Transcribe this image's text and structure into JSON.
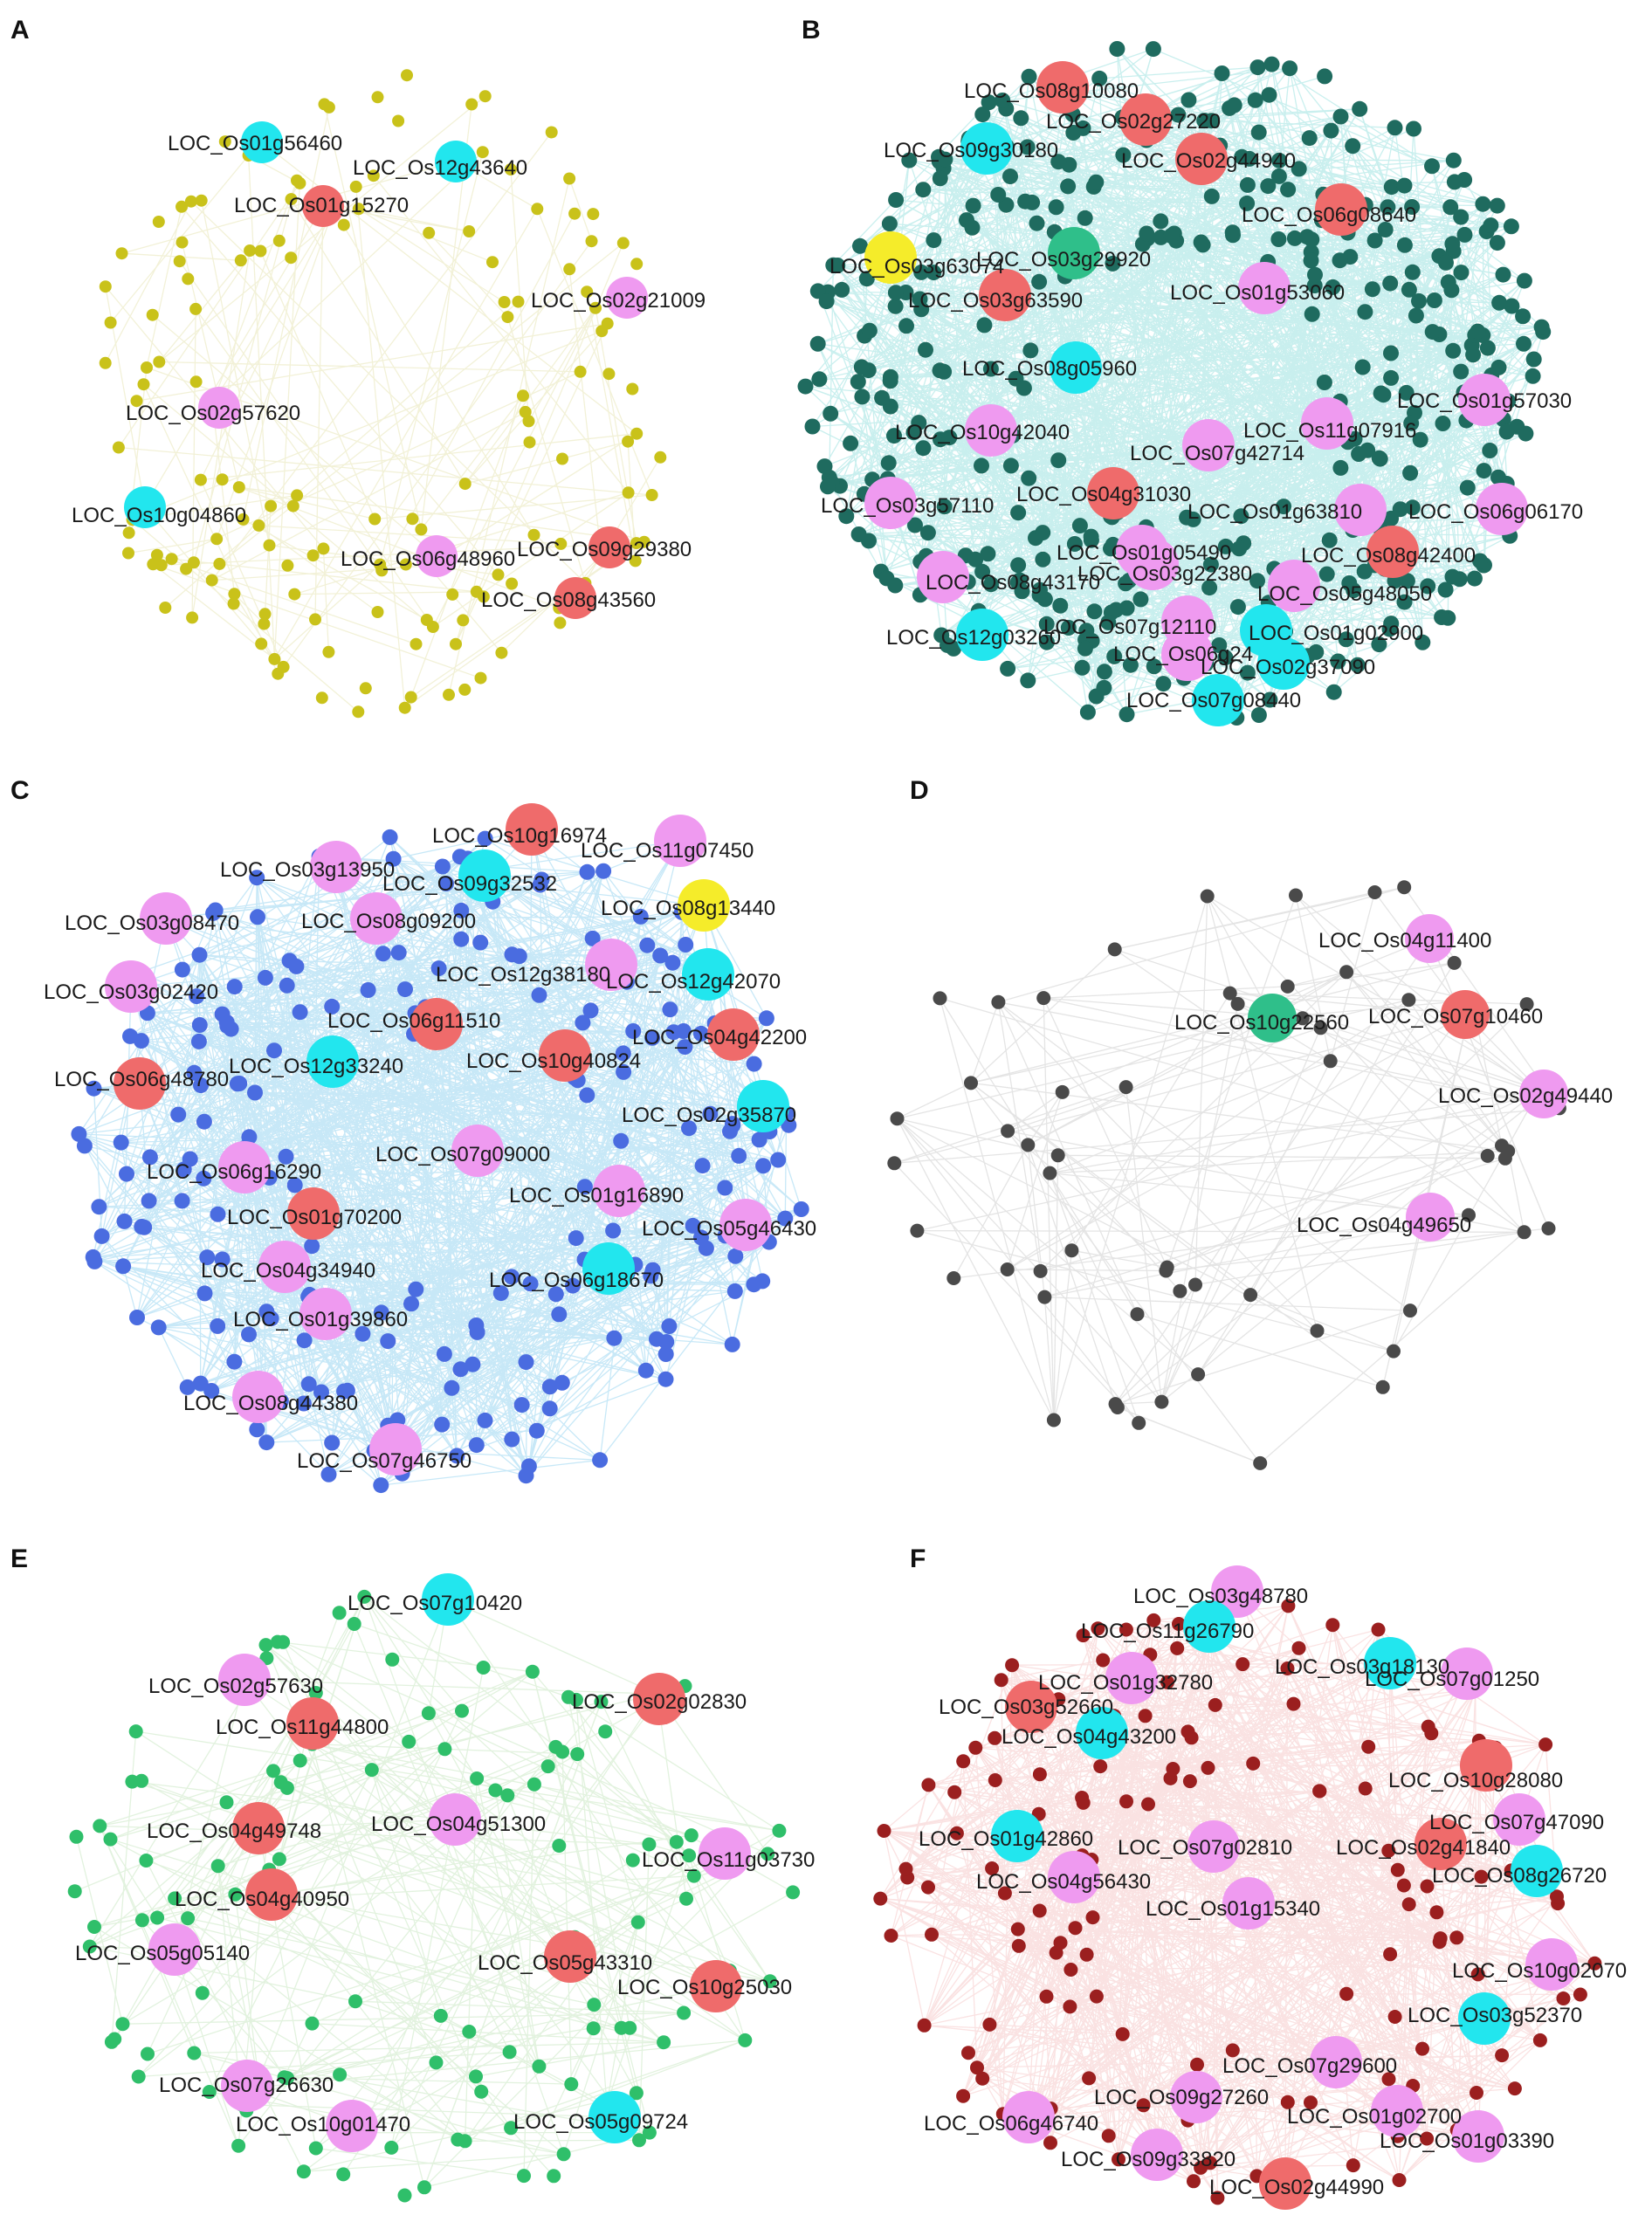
{
  "colors": {
    "red": "#ef6b6b",
    "cyan": "#22e6ee",
    "pink": "#ef9af0",
    "yellow": "#f5ec2a",
    "green": "#2fbf8a",
    "node_A": "#c9c21a",
    "edge_A": "#e8e6b8",
    "node_B": "#1f6b5f",
    "edge_B": "#3fc7c4",
    "node_C": "#4a6ce0",
    "edge_C": "#4ab4e6",
    "node_D": "#4a4a4a",
    "edge_D": "#cfcfcf",
    "node_E": "#2fbf6a",
    "edge_E": "#bfe3b8",
    "node_F": "#9b1f1f",
    "edge_F": "#f0a0a0"
  },
  "panels": [
    {
      "id": "A",
      "letter": "A",
      "nodes": [
        {
          "label": "LOC_Os01g56460",
          "color": "cyan"
        },
        {
          "label": "LOC_Os12g43640",
          "color": "cyan"
        },
        {
          "label": "LOC_Os01g15270",
          "color": "red"
        },
        {
          "label": "LOC_Os02g21009",
          "color": "pink"
        },
        {
          "label": "LOC_Os02g57620",
          "color": "pink"
        },
        {
          "label": "LOC_Os10g04860",
          "color": "cyan"
        },
        {
          "label": "LOC_Os06g48960",
          "color": "pink"
        },
        {
          "label": "LOC_Os09g29380",
          "color": "red"
        },
        {
          "label": "LOC_Os08g43560",
          "color": "red"
        }
      ]
    },
    {
      "id": "B",
      "letter": "B",
      "nodes": [
        {
          "label": "LOC_Os08g10080",
          "color": "red"
        },
        {
          "label": "LOC_Os02g27220",
          "color": "red"
        },
        {
          "label": "LOC_Os09g30180",
          "color": "cyan"
        },
        {
          "label": "LOC_Os02g44940",
          "color": "red"
        },
        {
          "label": "LOC_Os06g08640",
          "color": "red"
        },
        {
          "label": "LOC_Os03g63074",
          "color": "yellow"
        },
        {
          "label": "LOC_Os03g29920",
          "color": "green"
        },
        {
          "label": "LOC_Os03g63590",
          "color": "red"
        },
        {
          "label": "LOC_Os01g53060",
          "color": "pink"
        },
        {
          "label": "LOC_Os08g05960",
          "color": "cyan"
        },
        {
          "label": "LOC_Os01g57030",
          "color": "pink"
        },
        {
          "label": "LOC_Os10g42040",
          "color": "pink"
        },
        {
          "label": "LOC_Os11g07916",
          "color": "pink"
        },
        {
          "label": "LOC_Os07g42714",
          "color": "pink"
        },
        {
          "label": "LOC_Os03g57110",
          "color": "pink"
        },
        {
          "label": "LOC_Os04g31030",
          "color": "red"
        },
        {
          "label": "LOC_Os01g63810",
          "color": "pink"
        },
        {
          "label": "LOC_Os06g06170",
          "color": "pink"
        },
        {
          "label": "LOC_Os01g05490",
          "color": "pink"
        },
        {
          "label": "LOC_Os08g42400",
          "color": "red"
        },
        {
          "label": "LOC_Os08g43170",
          "color": "pink"
        },
        {
          "label": "LOC_Os03g22380",
          "color": "pink"
        },
        {
          "label": "LOC_Os05g48050",
          "color": "pink"
        },
        {
          "label": "LOC_Os12g03260",
          "color": "cyan"
        },
        {
          "label": "LOC_Os07g12110",
          "color": "pink"
        },
        {
          "label": "LOC_Os01g02900",
          "color": "cyan"
        },
        {
          "label": "LOC_Os06g24",
          "color": "pink"
        },
        {
          "label": "LOC_Os02g37090",
          "color": "cyan"
        },
        {
          "label": "LOC_Os07g08440",
          "color": "cyan"
        }
      ]
    },
    {
      "id": "C",
      "letter": "C",
      "nodes": [
        {
          "label": "LOC_Os10g16974",
          "color": "red"
        },
        {
          "label": "LOC_Os11g07450",
          "color": "pink"
        },
        {
          "label": "LOC_Os03g13950",
          "color": "pink"
        },
        {
          "label": "LOC_Os09g32532",
          "color": "cyan"
        },
        {
          "label": "LOC_Os08g13440",
          "color": "yellow"
        },
        {
          "label": "LOC_Os03g08470",
          "color": "pink"
        },
        {
          "label": "LOC_Os08g09200",
          "color": "pink"
        },
        {
          "label": "LOC_Os12g38180",
          "color": "pink"
        },
        {
          "label": "LOC_Os12g42070",
          "color": "cyan"
        },
        {
          "label": "LOC_Os03g02420",
          "color": "pink"
        },
        {
          "label": "LOC_Os06g11510",
          "color": "red"
        },
        {
          "label": "LOC_Os04g42200",
          "color": "red"
        },
        {
          "label": "LOC_Os06g48780",
          "color": "red"
        },
        {
          "label": "LOC_Os12g33240",
          "color": "cyan"
        },
        {
          "label": "LOC_Os10g40824",
          "color": "red"
        },
        {
          "label": "LOC_Os02g35870",
          "color": "cyan"
        },
        {
          "label": "LOC_Os06g16290",
          "color": "pink"
        },
        {
          "label": "LOC_Os07g09000",
          "color": "pink"
        },
        {
          "label": "LOC_Os01g16890",
          "color": "pink"
        },
        {
          "label": "LOC_Os01g70200",
          "color": "red"
        },
        {
          "label": "LOC_Os05g46430",
          "color": "pink"
        },
        {
          "label": "LOC_Os04g34940",
          "color": "pink"
        },
        {
          "label": "LOC_Os06g18670",
          "color": "cyan"
        },
        {
          "label": "LOC_Os01g39860",
          "color": "pink"
        },
        {
          "label": "LOC_Os08g44380",
          "color": "pink"
        },
        {
          "label": "LOC_Os07g46750",
          "color": "pink"
        }
      ]
    },
    {
      "id": "D",
      "letter": "D",
      "nodes": [
        {
          "label": "LOC_Os04g11400",
          "color": "pink"
        },
        {
          "label": "LOC_Os10g22560",
          "color": "green"
        },
        {
          "label": "LOC_Os07g10460",
          "color": "red"
        },
        {
          "label": "LOC_Os02g49440",
          "color": "pink"
        },
        {
          "label": "LOC_Os04g49650",
          "color": "pink"
        }
      ]
    },
    {
      "id": "E",
      "letter": "E",
      "nodes": [
        {
          "label": "LOC_Os07g10420",
          "color": "cyan"
        },
        {
          "label": "LOC_Os02g57630",
          "color": "pink"
        },
        {
          "label": "LOC_Os02g02830",
          "color": "red"
        },
        {
          "label": "LOC_Os11g44800",
          "color": "red"
        },
        {
          "label": "LOC_Os04g49748",
          "color": "red"
        },
        {
          "label": "LOC_Os04g51300",
          "color": "pink"
        },
        {
          "label": "LOC_Os11g03730",
          "color": "pink"
        },
        {
          "label": "LOC_Os04g40950",
          "color": "red"
        },
        {
          "label": "LOC_Os05g05140",
          "color": "pink"
        },
        {
          "label": "LOC_Os05g43310",
          "color": "red"
        },
        {
          "label": "LOC_Os10g25030",
          "color": "red"
        },
        {
          "label": "LOC_Os07g26630",
          "color": "pink"
        },
        {
          "label": "LOC_Os10g01470",
          "color": "pink"
        },
        {
          "label": "LOC_Os05g09724",
          "color": "cyan"
        }
      ]
    },
    {
      "id": "F",
      "letter": "F",
      "nodes": [
        {
          "label": "LOC_Os03g48780",
          "color": "pink"
        },
        {
          "label": "LOC_Os11g26790",
          "color": "cyan"
        },
        {
          "label": "LOC_Os03g18130",
          "color": "cyan"
        },
        {
          "label": "LOC_Os01g32780",
          "color": "pink"
        },
        {
          "label": "LOC_Os07g01250",
          "color": "pink"
        },
        {
          "label": "LOC_Os03g52660",
          "color": "red"
        },
        {
          "label": "LOC_Os04g43200",
          "color": "cyan"
        },
        {
          "label": "LOC_Os10g28080",
          "color": "red"
        },
        {
          "label": "LOC_Os07g47090",
          "color": "pink"
        },
        {
          "label": "LOC_Os01g42860",
          "color": "cyan"
        },
        {
          "label": "LOC_Os07g02810",
          "color": "pink"
        },
        {
          "label": "LOC_Os02g41840",
          "color": "red"
        },
        {
          "label": "LOC_Os08g26720",
          "color": "cyan"
        },
        {
          "label": "LOC_Os04g56430",
          "color": "pink"
        },
        {
          "label": "LOC_Os01g15340",
          "color": "pink"
        },
        {
          "label": "LOC_Os10g02070",
          "color": "pink"
        },
        {
          "label": "LOC_Os03g52370",
          "color": "cyan"
        },
        {
          "label": "LOC_Os07g29600",
          "color": "pink"
        },
        {
          "label": "LOC_Os09g27260",
          "color": "pink"
        },
        {
          "label": "LOC_Os06g46740",
          "color": "pink"
        },
        {
          "label": "LOC_Os01g02700",
          "color": "pink"
        },
        {
          "label": "LOC_Os01g03390",
          "color": "pink"
        },
        {
          "label": "LOC_Os09g33820",
          "color": "pink"
        },
        {
          "label": "LOC_Os02g44990",
          "color": "red"
        }
      ]
    }
  ]
}
